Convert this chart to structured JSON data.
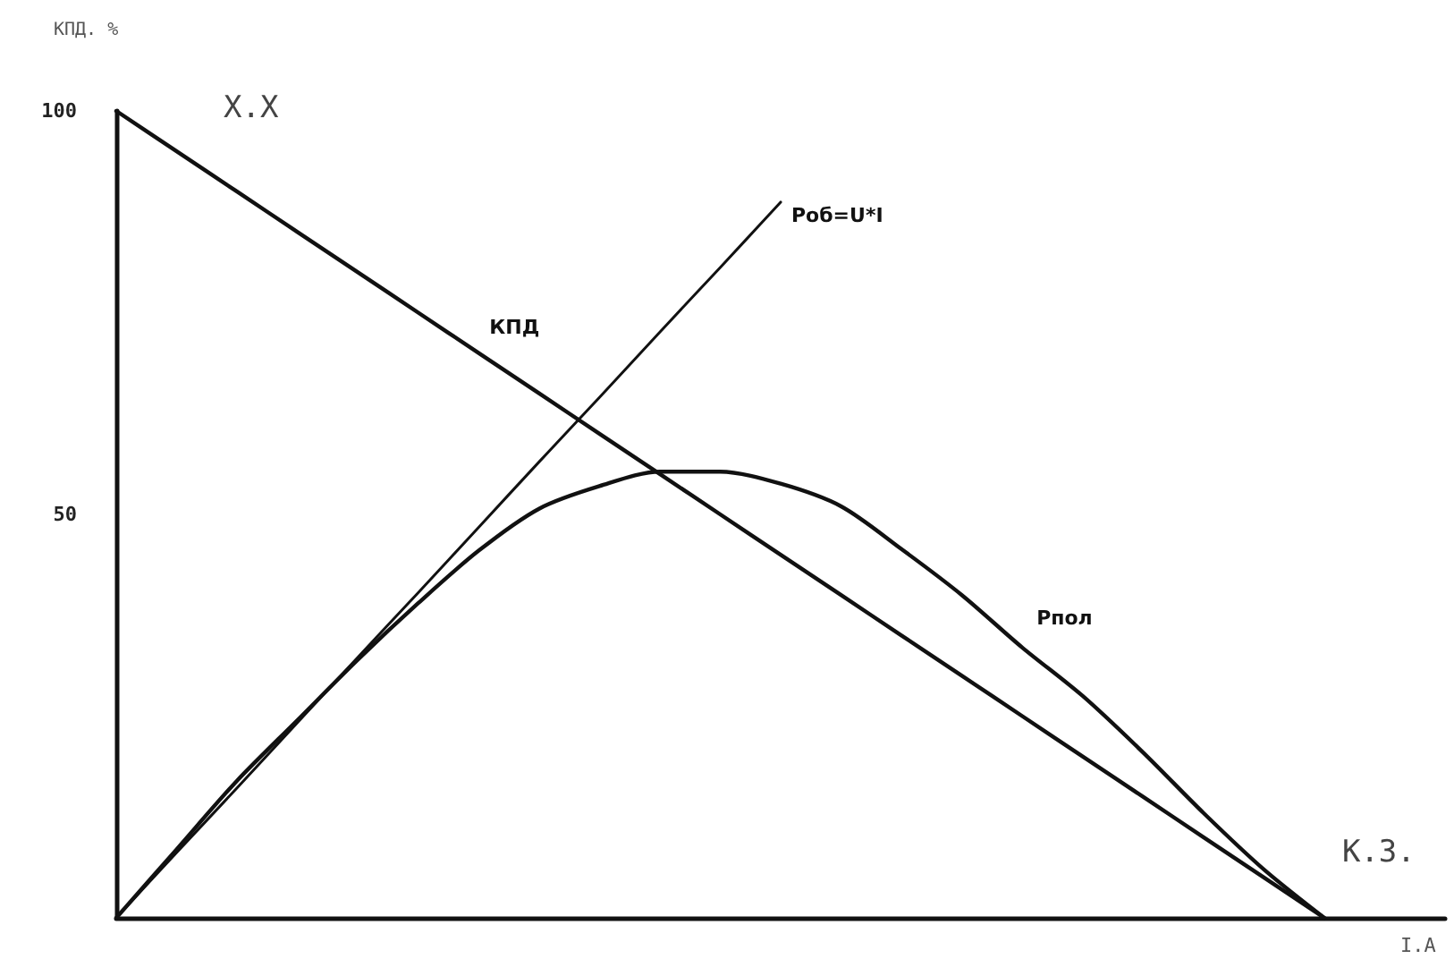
{
  "chart_data": {
    "type": "line",
    "ylabel": "КПД. %",
    "xlabel": "I.A",
    "categories": [
      null,
      null,
      null,
      null,
      null,
      null,
      null,
      null,
      null,
      null,
      null,
      null,
      null,
      null,
      null,
      null,
      null,
      null,
      null,
      null,
      null,
      null,
      null
    ],
    "ylim": [
      0,
      100
    ],
    "yticks": [
      50,
      100
    ],
    "tick_labels": "y",
    "grid": false,
    "legend": false,
    "marker": "none",
    "line_style": "solid",
    "series": [
      {
        "name": "КПД",
        "color": "#111111",
        "values": [
          100,
          95,
          90,
          85,
          80,
          75,
          70,
          65,
          60,
          55,
          50,
          45,
          40,
          35,
          30,
          25,
          20,
          15,
          10,
          5,
          0,
          null,
          null
        ]
      },
      {
        "name": "Роб=U*I",
        "color": "#111111",
        "values": [
          0,
          8.1,
          16.1,
          24.2,
          32.3,
          40.3,
          48.4,
          56.5,
          64.5,
          72.6,
          80.6,
          88.7,
          null,
          null,
          null,
          null,
          null,
          null,
          null,
          null,
          null,
          null,
          null
        ]
      },
      {
        "name": "Рпол",
        "color": "#111111",
        "values": [
          0,
          8.5,
          17,
          24.5,
          32,
          39,
          45.5,
          50.7,
          53.5,
          55.3,
          55.3,
          53.8,
          51,
          45.7,
          40,
          33.5,
          27.5,
          20.5,
          13,
          6,
          0,
          null,
          null
        ]
      }
    ],
    "annotations": [
      "Х.Х",
      "К.З."
    ]
  }
}
